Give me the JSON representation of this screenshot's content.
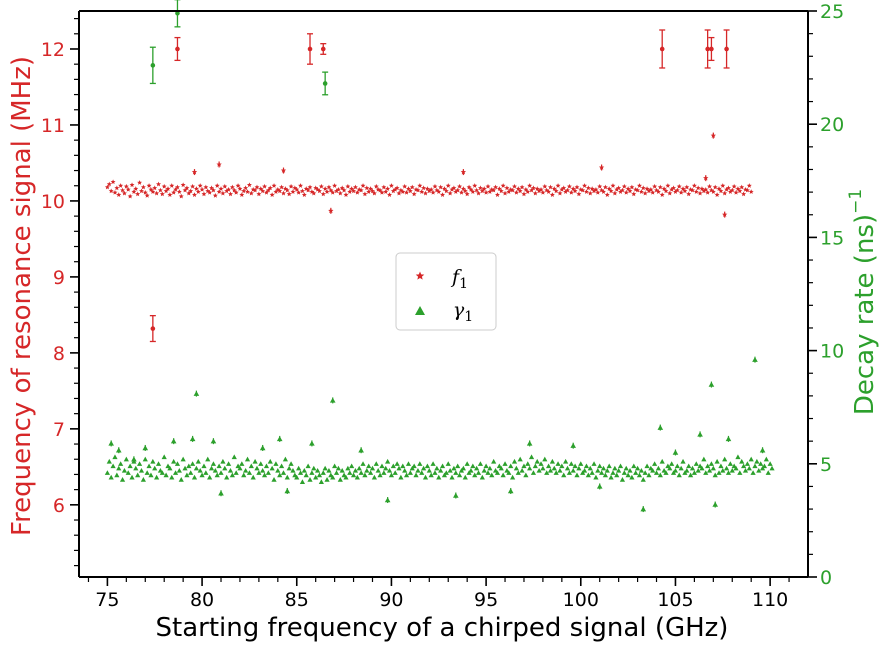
{
  "chart_data": {
    "type": "scatter",
    "title": "",
    "xlabel": "Starting frequency of a chirped signal (GHz)",
    "ylabel_left": "Frequency of resonance signal (MHz)",
    "ylabel_right": "Decay rate (ns)",
    "ylabel_right_exponent": "−1",
    "xlim": [
      73.5,
      112
    ],
    "ylim_left": [
      5.05,
      12.5
    ],
    "ylim_right": [
      0,
      25
    ],
    "x_ticks": [
      "75",
      "80",
      "85",
      "90",
      "95",
      "100",
      "105",
      "110"
    ],
    "y_left_ticks": [
      "6",
      "7",
      "8",
      "9",
      "10",
      "11",
      "12"
    ],
    "y_right_ticks": [
      "0",
      "5",
      "10",
      "15",
      "20",
      "25"
    ],
    "grid": false,
    "legend_position": "center",
    "colors": {
      "f1": "#d62728",
      "gamma1": "#2ca02c",
      "axis": "#000000"
    },
    "series": [
      {
        "name": "f",
        "name_subscript": "1",
        "axis": "left",
        "marker": "star",
        "color": "#d62728",
        "x_start": 75.0,
        "x_step": 0.1,
        "baseline_values": [
          10.18,
          10.22,
          10.13,
          10.25,
          10.11,
          10.17,
          10.08,
          10.2,
          10.14,
          10.1,
          10.19,
          10.15,
          10.06,
          10.21,
          10.12,
          10.16,
          10.09,
          10.24,
          10.13,
          10.18,
          10.11,
          10.07,
          10.2,
          10.15,
          10.12,
          10.17,
          10.1,
          10.22,
          10.14,
          10.09,
          10.19,
          10.13,
          10.16,
          10.08,
          10.2,
          10.11,
          10.15,
          10.18,
          10.12,
          10.06,
          10.21,
          10.14,
          10.17,
          10.1,
          10.13,
          10.19,
          10.08,
          10.16,
          10.12,
          10.2,
          10.15,
          10.09,
          10.18,
          10.13,
          10.11,
          10.17,
          10.14,
          10.07,
          10.2,
          10.12,
          10.16,
          10.1,
          10.19,
          10.13,
          10.15,
          10.09,
          10.18,
          10.14,
          10.11,
          10.2,
          10.16,
          10.08,
          10.13,
          10.17,
          10.12,
          10.21,
          10.1,
          10.15,
          10.14,
          10.18,
          10.09,
          10.16,
          10.13,
          10.19,
          10.11,
          10.14,
          10.17,
          10.08,
          10.2,
          10.12,
          10.15,
          10.13,
          10.18,
          10.1,
          10.16,
          10.14,
          10.09,
          10.19,
          10.12,
          10.17,
          10.15,
          10.11,
          10.2,
          10.13,
          10.08,
          10.16,
          10.14,
          10.18,
          10.12,
          10.1,
          10.17,
          10.15,
          10.13,
          10.19,
          10.09,
          10.16,
          10.12,
          10.18,
          10.14,
          10.11,
          10.2,
          10.13,
          10.15,
          10.1,
          10.17,
          10.14,
          10.08,
          10.19,
          10.12,
          10.16,
          10.13,
          10.18,
          10.11,
          10.15,
          10.14,
          10.2,
          10.09,
          10.17,
          10.12,
          10.16,
          10.13,
          10.1,
          10.19,
          10.15,
          10.14,
          10.11,
          10.18,
          10.12,
          10.16,
          10.08,
          10.2,
          10.13,
          10.15,
          10.17,
          10.1,
          10.14,
          10.12,
          10.19,
          10.11,
          10.16,
          10.13,
          10.18,
          10.09,
          10.15,
          10.14,
          10.2,
          10.12,
          10.17,
          10.1,
          10.16,
          10.13,
          10.15,
          10.11,
          10.19,
          10.14,
          10.12,
          10.18,
          10.08,
          10.16,
          10.13,
          10.2,
          10.1,
          10.15,
          10.17,
          10.12,
          10.14,
          10.19,
          10.11,
          10.16,
          10.13,
          10.09,
          10.18,
          10.15,
          10.12,
          10.2,
          10.14,
          10.1,
          10.17,
          10.13,
          10.16,
          10.11,
          10.19,
          10.12,
          10.15,
          10.14,
          10.18,
          10.08,
          10.16,
          10.13,
          10.2,
          10.1,
          10.17,
          10.12,
          10.15,
          10.14,
          10.19,
          10.11,
          10.16,
          10.13,
          10.18,
          10.09,
          10.15,
          10.12,
          10.2,
          10.14,
          10.17,
          10.1,
          10.16,
          10.13,
          10.15,
          10.11,
          10.19,
          10.14,
          10.12,
          10.18,
          10.08,
          10.16,
          10.13,
          10.2,
          10.1,
          10.15,
          10.17,
          10.12,
          10.14,
          10.19,
          10.11,
          10.16,
          10.13,
          10.18,
          10.09,
          10.15,
          10.14,
          10.2,
          10.12,
          10.17,
          10.1,
          10.16,
          10.13,
          10.15,
          10.11,
          10.19,
          10.14,
          10.12,
          10.18,
          10.08,
          10.16,
          10.13,
          10.2,
          10.1,
          10.15,
          10.17,
          10.12,
          10.14,
          10.19,
          10.11,
          10.16,
          10.13,
          10.18,
          10.09,
          10.15,
          10.14,
          10.2,
          10.12,
          10.17,
          10.1,
          10.16,
          10.13,
          10.15,
          10.11,
          10.19,
          10.14,
          10.12,
          10.18,
          10.08,
          10.16,
          10.13,
          10.2,
          10.1,
          10.15,
          10.17,
          10.12,
          10.14,
          10.19,
          10.11,
          10.16,
          10.13,
          10.18,
          10.09,
          10.15,
          10.14,
          10.2,
          10.12,
          10.17,
          10.1,
          10.16,
          10.13,
          10.15,
          10.11,
          10.19,
          10.14,
          10.12,
          10.18,
          10.08,
          10.16,
          10.13,
          10.2,
          10.1,
          10.15,
          10.17,
          10.12,
          10.14,
          10.19,
          10.11,
          10.16,
          10.13,
          10.18,
          10.09,
          10.15,
          10.14,
          10.2,
          10.12
        ],
        "highlighted_points": [
          {
            "x": 79.6,
            "y": 10.38
          },
          {
            "x": 80.9,
            "y": 10.48
          },
          {
            "x": 84.3,
            "y": 10.4
          },
          {
            "x": 86.8,
            "y": 9.87
          },
          {
            "x": 93.8,
            "y": 10.38
          },
          {
            "x": 101.1,
            "y": 10.44
          },
          {
            "x": 106.6,
            "y": 10.3
          },
          {
            "x": 107.0,
            "y": 10.86
          },
          {
            "x": 107.6,
            "y": 9.82
          }
        ],
        "outliers": [
          {
            "x": 77.4,
            "y": 8.32,
            "err": 0.17
          },
          {
            "x": 78.7,
            "y": 12.0,
            "err": 0.15
          },
          {
            "x": 85.7,
            "y": 12.0,
            "err": 0.2
          },
          {
            "x": 86.4,
            "y": 12.0,
            "err": 0.07
          },
          {
            "x": 104.3,
            "y": 12.0,
            "err": 0.25
          },
          {
            "x": 106.7,
            "y": 12.0,
            "err": 0.25
          },
          {
            "x": 106.9,
            "y": 12.0,
            "err": 0.15
          },
          {
            "x": 107.7,
            "y": 12.0,
            "err": 0.25
          }
        ]
      },
      {
        "name": "γ",
        "name_subscript": "1",
        "axis": "right",
        "marker": "triangle",
        "color": "#2ca02c",
        "x_start": 75.0,
        "x_step": 0.1,
        "baseline_values": [
          4.6,
          5.1,
          4.4,
          4.9,
          5.3,
          4.5,
          4.8,
          5.0,
          4.3,
          4.7,
          5.2,
          4.6,
          4.9,
          4.4,
          5.1,
          4.8,
          4.5,
          5.0,
          4.7,
          4.3,
          5.2,
          4.6,
          4.9,
          4.5,
          5.1,
          4.8,
          4.4,
          5.0,
          4.7,
          4.6,
          5.3,
          4.5,
          4.9,
          4.8,
          4.4,
          5.1,
          4.6,
          5.0,
          4.7,
          4.3,
          5.2,
          4.8,
          4.5,
          4.9,
          4.6,
          5.0,
          4.4,
          4.8,
          5.1,
          4.7,
          4.5,
          4.9,
          4.6,
          5.2,
          4.4,
          4.8,
          5.0,
          4.7,
          4.5,
          4.9,
          4.6,
          5.1,
          4.8,
          4.4,
          5.0,
          4.7,
          4.5,
          5.3,
          4.6,
          4.9,
          4.8,
          5.0,
          4.5,
          4.7,
          5.2,
          4.6,
          4.9,
          4.4,
          5.1,
          4.8,
          4.6,
          5.0,
          4.7,
          4.5,
          4.9,
          4.6,
          5.1,
          4.8,
          4.3,
          5.0,
          4.7,
          4.5,
          4.9,
          4.6,
          5.2,
          4.4,
          4.8,
          5.0,
          4.7,
          4.5,
          4.4,
          4.8,
          4.6,
          4.2,
          4.7,
          4.5,
          4.9,
          4.3,
          4.6,
          4.8,
          4.4,
          4.7,
          4.5,
          4.2,
          4.6,
          4.8,
          4.3,
          4.7,
          4.5,
          4.4,
          4.9,
          4.6,
          4.8,
          4.3,
          4.7,
          4.5,
          4.4,
          4.8,
          4.6,
          4.9,
          4.5,
          4.7,
          4.4,
          4.8,
          4.6,
          5.0,
          4.5,
          4.7,
          4.9,
          4.6,
          4.8,
          4.4,
          5.0,
          4.7,
          4.5,
          4.9,
          4.6,
          4.8,
          5.1,
          4.7,
          4.5,
          4.9,
          4.6,
          5.0,
          4.8,
          4.4,
          4.9,
          4.7,
          4.5,
          5.0,
          4.6,
          4.8,
          4.9,
          4.5,
          4.7,
          5.0,
          4.6,
          4.8,
          4.4,
          4.9,
          4.7,
          4.5,
          5.0,
          4.6,
          4.8,
          4.4,
          4.7,
          4.9,
          4.5,
          4.6,
          5.0,
          4.7,
          4.4,
          4.8,
          4.6,
          4.9,
          4.5,
          4.7,
          4.8,
          4.4,
          5.0,
          4.6,
          4.7,
          4.9,
          4.5,
          4.8,
          4.6,
          5.0,
          4.4,
          4.7,
          4.9,
          4.6,
          4.8,
          4.5,
          5.1,
          4.7,
          4.6,
          4.9,
          4.8,
          4.5,
          5.0,
          4.7,
          4.6,
          4.9,
          4.4,
          5.1,
          4.8,
          4.6,
          5.2,
          4.7,
          4.9,
          4.5,
          5.0,
          4.8,
          5.3,
          4.6,
          4.9,
          5.1,
          4.7,
          5.0,
          4.8,
          5.2,
          4.6,
          4.9,
          4.7,
          5.1,
          4.8,
          4.6,
          5.0,
          4.7,
          4.9,
          4.5,
          5.1,
          4.8,
          4.6,
          5.0,
          4.7,
          4.9,
          4.5,
          4.8,
          5.0,
          4.6,
          4.7,
          4.9,
          4.5,
          4.8,
          4.6,
          5.0,
          4.4,
          4.7,
          4.9,
          4.6,
          4.8,
          4.5,
          4.7,
          4.9,
          4.4,
          4.6,
          4.8,
          4.5,
          4.7,
          4.9,
          4.3,
          4.6,
          4.8,
          4.5,
          4.7,
          4.4,
          4.9,
          4.6,
          4.8,
          4.5,
          4.7,
          4.3,
          4.6,
          4.9,
          4.5,
          4.8,
          4.7,
          5.0,
          4.6,
          4.8,
          4.5,
          5.1,
          4.7,
          4.6,
          4.9,
          4.8,
          5.0,
          4.6,
          4.7,
          4.9,
          4.5,
          4.8,
          5.1,
          4.6,
          4.7,
          4.9,
          4.5,
          4.8,
          4.6,
          5.0,
          4.7,
          4.9,
          4.8,
          5.2,
          4.6,
          4.9,
          4.7,
          5.0,
          4.8,
          4.5,
          5.1,
          4.6,
          4.9,
          4.7,
          5.2,
          4.8,
          4.6,
          5.0,
          4.7,
          4.9,
          4.8,
          5.3,
          4.6,
          5.1,
          4.9,
          4.7,
          5.0,
          4.8,
          5.2,
          4.6,
          4.9,
          5.1,
          4.7,
          5.0,
          4.8,
          4.9,
          5.2,
          4.6,
          5.0,
          4.8
        ],
        "highlighted_points": [
          {
            "x": 75.2,
            "y": 5.9
          },
          {
            "x": 75.6,
            "y": 5.6
          },
          {
            "x": 76.4,
            "y": 5.2
          },
          {
            "x": 77.0,
            "y": 5.7
          },
          {
            "x": 78.5,
            "y": 6.0
          },
          {
            "x": 79.5,
            "y": 6.1
          },
          {
            "x": 79.7,
            "y": 8.1
          },
          {
            "x": 80.6,
            "y": 6.0
          },
          {
            "x": 81.0,
            "y": 3.7
          },
          {
            "x": 83.2,
            "y": 5.7
          },
          {
            "x": 84.1,
            "y": 6.1
          },
          {
            "x": 84.5,
            "y": 3.8
          },
          {
            "x": 85.8,
            "y": 5.9
          },
          {
            "x": 86.9,
            "y": 7.8
          },
          {
            "x": 88.4,
            "y": 5.6
          },
          {
            "x": 89.8,
            "y": 3.4
          },
          {
            "x": 93.4,
            "y": 3.6
          },
          {
            "x": 96.3,
            "y": 3.8
          },
          {
            "x": 97.3,
            "y": 5.9
          },
          {
            "x": 99.6,
            "y": 5.8
          },
          {
            "x": 101.0,
            "y": 4.0
          },
          {
            "x": 103.3,
            "y": 3.0
          },
          {
            "x": 104.2,
            "y": 6.6
          },
          {
            "x": 105.0,
            "y": 5.5
          },
          {
            "x": 106.3,
            "y": 6.3
          },
          {
            "x": 106.9,
            "y": 8.5
          },
          {
            "x": 107.1,
            "y": 3.2
          },
          {
            "x": 107.8,
            "y": 6.1
          },
          {
            "x": 109.2,
            "y": 9.6
          },
          {
            "x": 109.6,
            "y": 5.6
          }
        ],
        "outliers": [
          {
            "x": 77.4,
            "y": 22.6,
            "err": 0.8
          },
          {
            "x": 78.7,
            "y": 24.9,
            "err": 0.6
          },
          {
            "x": 86.5,
            "y": 21.8,
            "err": 0.5
          }
        ]
      }
    ]
  }
}
